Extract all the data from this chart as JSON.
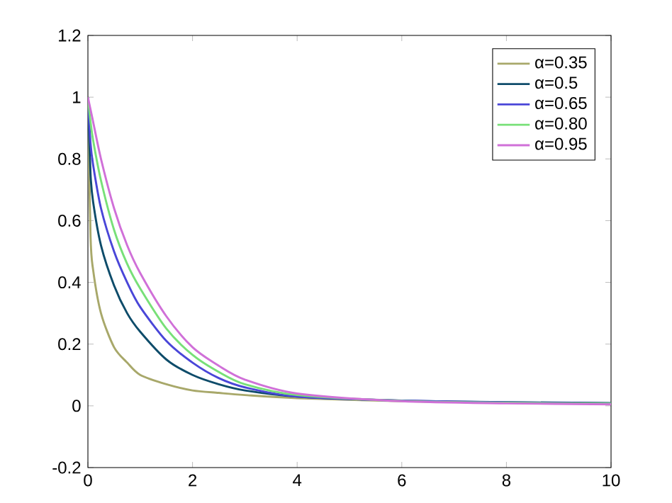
{
  "chart_data": {
    "type": "line",
    "xlim": [
      0,
      10
    ],
    "ylim": [
      -0.2,
      1.2
    ],
    "xticks": [
      0,
      2,
      4,
      6,
      8,
      10
    ],
    "yticks": [
      -0.2,
      0,
      0.2,
      0.4,
      0.6,
      0.8,
      1,
      1.2
    ],
    "grid": false,
    "legend": "top right",
    "marker": "none",
    "x": [
      0,
      0.05,
      0.1,
      0.25,
      0.5,
      0.75,
      1,
      1.5,
      2,
      2.5,
      3,
      4,
      6,
      8,
      10
    ],
    "series": [
      {
        "name": "α=0.35",
        "color": "#a8a86a",
        "values": [
          1,
          0.55,
          0.44,
          0.3,
          0.19,
          0.14,
          0.1,
          0.07,
          0.05,
          0.042,
          0.035,
          0.025,
          0.015,
          0.01,
          0.008
        ]
      },
      {
        "name": "α=0.5",
        "color": "#0e4c6a",
        "values": [
          1,
          0.75,
          0.66,
          0.52,
          0.39,
          0.3,
          0.24,
          0.15,
          0.1,
          0.07,
          0.05,
          0.03,
          0.017,
          0.012,
          0.009
        ]
      },
      {
        "name": "α=0.65",
        "color": "#4a46d8",
        "values": [
          1,
          0.85,
          0.78,
          0.64,
          0.5,
          0.4,
          0.32,
          0.21,
          0.14,
          0.09,
          0.06,
          0.03,
          0.017,
          0.011,
          0.008
        ]
      },
      {
        "name": "α=0.80",
        "color": "#78e078",
        "values": [
          1,
          0.92,
          0.86,
          0.73,
          0.57,
          0.46,
          0.38,
          0.25,
          0.165,
          0.11,
          0.07,
          0.035,
          0.016,
          0.01,
          0.007
        ]
      },
      {
        "name": "α=0.95",
        "color": "#d070d8",
        "values": [
          1,
          0.96,
          0.92,
          0.8,
          0.64,
          0.52,
          0.43,
          0.29,
          0.19,
          0.13,
          0.085,
          0.04,
          0.015,
          0.008,
          0.005
        ]
      }
    ]
  }
}
